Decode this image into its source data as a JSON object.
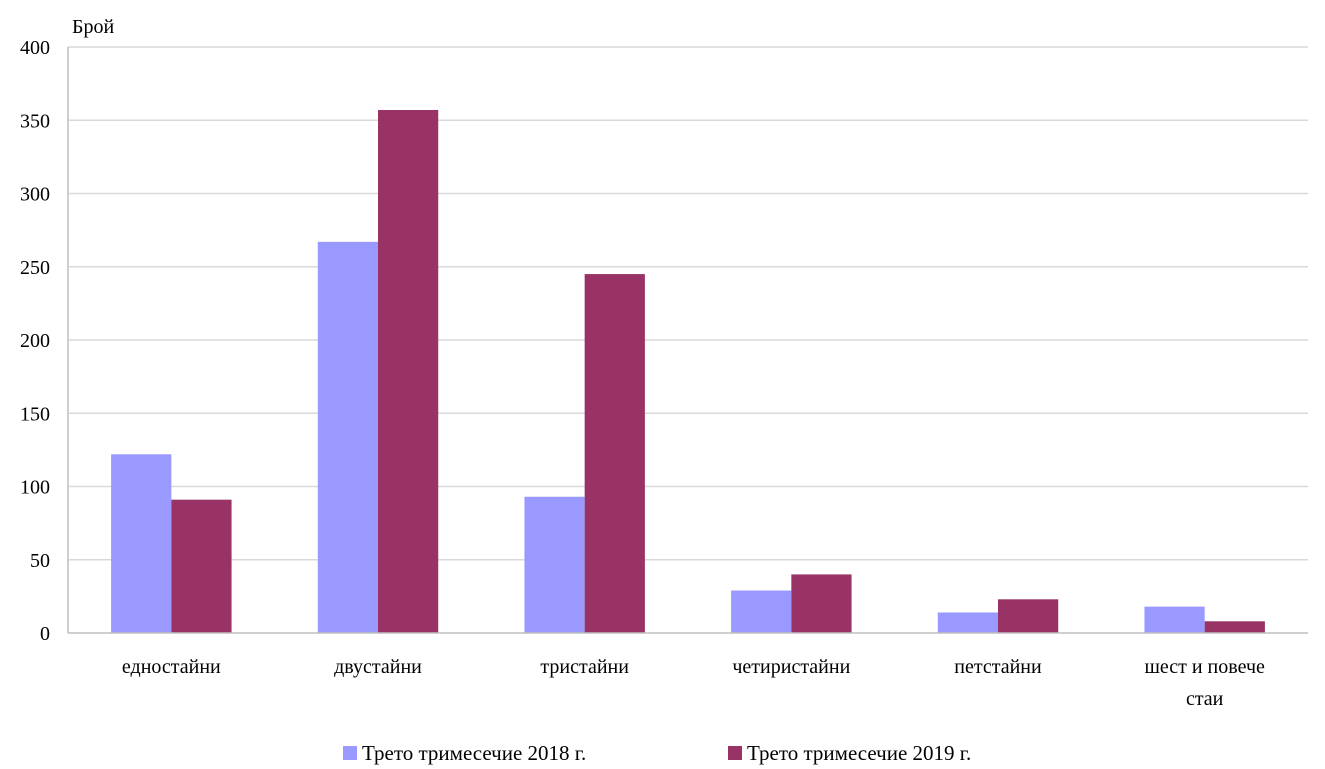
{
  "chart_data": {
    "type": "bar",
    "ylabel": "Брой",
    "ylim": [
      0,
      400
    ],
    "yticks": [
      0,
      50,
      100,
      150,
      200,
      250,
      300,
      350,
      400
    ],
    "grid": true,
    "legend_position": "bottom",
    "categories": [
      [
        "едностайни"
      ],
      [
        "двустайни"
      ],
      [
        "тристайни"
      ],
      [
        "четиристайни"
      ],
      [
        "петстайни"
      ],
      [
        "шест и повече",
        "стаи"
      ]
    ],
    "series": [
      {
        "name": "Трето тримесечие 2018 г.",
        "color": "#9999ff",
        "values": [
          122,
          267,
          93,
          29,
          14,
          18
        ]
      },
      {
        "name": "Трето тримесечие 2019 г.",
        "color": "#993366",
        "values": [
          91,
          357,
          245,
          40,
          23,
          8
        ]
      }
    ]
  }
}
